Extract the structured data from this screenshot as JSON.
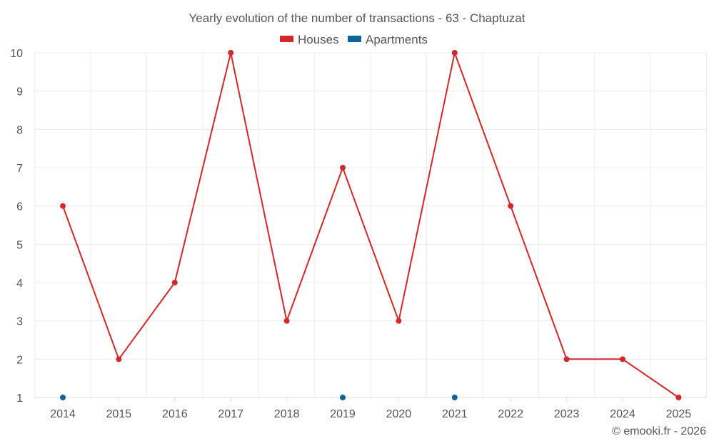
{
  "chart_data": {
    "type": "line",
    "title": "Yearly evolution of the number of transactions - 63 - Chaptuzat",
    "x": [
      "2014",
      "2015",
      "2016",
      "2017",
      "2018",
      "2019",
      "2020",
      "2021",
      "2022",
      "2023",
      "2024",
      "2025"
    ],
    "y_ticks": [
      "1",
      "2",
      "3",
      "4",
      "5",
      "6",
      "7",
      "8",
      "9",
      "10"
    ],
    "ylim": [
      1,
      10
    ],
    "grid": true,
    "legend_position": "top-center",
    "series": [
      {
        "name": "Houses",
        "color": "#d62728",
        "values": [
          6,
          2,
          4,
          10,
          3,
          7,
          3,
          10,
          6,
          2,
          2,
          1
        ]
      },
      {
        "name": "Apartments",
        "color": "#0e6596",
        "values": [
          1,
          null,
          null,
          null,
          null,
          1,
          null,
          1,
          null,
          null,
          null,
          null
        ]
      }
    ]
  },
  "credit": "© emooki.fr - 2026"
}
